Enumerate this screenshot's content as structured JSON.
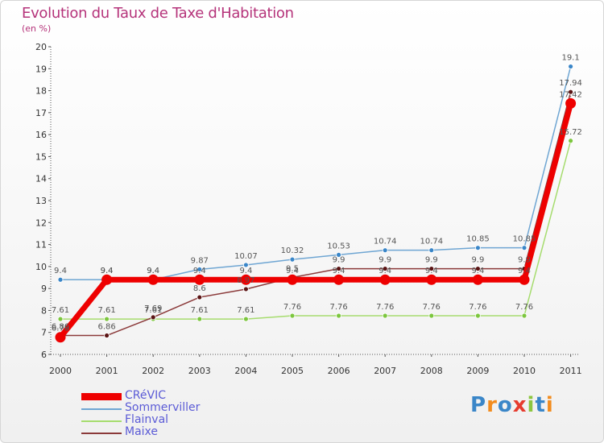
{
  "title": "Evolution du Taux de Taxe d'Habitation",
  "unit_label": "(en %)",
  "logo": {
    "text": "Proxiti",
    "letters": [
      "P",
      "r",
      "o",
      "x",
      "i",
      "t",
      "i"
    ],
    "colors": [
      "#3a86c8",
      "#f28c1e",
      "#3a86c8",
      "#e63c2f",
      "#8cc63f",
      "#3a86c8",
      "#f28c1e"
    ]
  },
  "chart_data": {
    "type": "line",
    "title": "Evolution du Taux de Taxe d'Habitation",
    "ylabel": "(en %)",
    "xlabel": "",
    "x": [
      "2000",
      "2001",
      "2002",
      "2003",
      "2004",
      "2005",
      "2006",
      "2007",
      "2008",
      "2009",
      "2010",
      "2011"
    ],
    "ylim": [
      6,
      20
    ],
    "yticks": [
      6,
      7,
      8,
      9,
      10,
      11,
      12,
      13,
      14,
      15,
      16,
      17,
      18,
      19,
      20
    ],
    "grid": false,
    "legend_position": "bottom-left",
    "series": [
      {
        "name": "Sommerviller",
        "color": "#6fa6d3",
        "marker": "#3a86c8",
        "width": 1.5,
        "values": [
          9.4,
          9.4,
          9.4,
          9.87,
          10.07,
          10.32,
          10.53,
          10.74,
          10.74,
          10.85,
          10.85,
          19.1
        ],
        "labels": [
          "9.4",
          "9.4",
          "9.4",
          "9.87",
          "10.07",
          "10.32",
          "10.53",
          "10.74",
          "10.74",
          "10.85",
          "10.85",
          "19.1"
        ]
      },
      {
        "name": "Flainval",
        "color": "#a6dc6e",
        "marker": "#7cc63e",
        "width": 1.5,
        "values": [
          7.61,
          7.61,
          7.61,
          7.61,
          7.61,
          7.76,
          7.76,
          7.76,
          7.76,
          7.76,
          7.76,
          15.72
        ],
        "labels": [
          "7.61",
          "7.61",
          "7.61",
          "7.61",
          "7.61",
          "7.76",
          "7.76",
          "7.76",
          "7.76",
          "7.76",
          "7.76",
          "15.72"
        ]
      },
      {
        "name": "Maixe",
        "color": "#8b3a3a",
        "marker": "#5a1414",
        "width": 1.5,
        "values": [
          6.86,
          6.86,
          7.69,
          8.6,
          8.97,
          9.5,
          9.9,
          9.9,
          9.9,
          9.9,
          9.9,
          17.94
        ],
        "labels": [
          "6.86",
          "6.86",
          "7.69",
          "8.6",
          "8.97",
          "9.5",
          "9.9",
          "9.9",
          "9.9",
          "9.9",
          "9.9",
          "17.94"
        ]
      },
      {
        "name": "CRéVIC",
        "color": "#ee0000",
        "marker": "#ee0000",
        "width": 7,
        "values": [
          6.78,
          9.4,
          9.4,
          9.4,
          9.4,
          9.4,
          9.4,
          9.4,
          9.4,
          9.4,
          9.4,
          17.42
        ],
        "labels": [
          "6.78",
          "9.4",
          "9.4",
          "9.4",
          "9.4",
          "9.4",
          "9.4",
          "9.4",
          "9.4",
          "9.4",
          "9.4",
          "17.42"
        ]
      }
    ],
    "legend": [
      {
        "name": "CRéVIC",
        "color": "#ee0000"
      },
      {
        "name": "Sommerviller",
        "color": "#6fa6d3"
      },
      {
        "name": "Flainval",
        "color": "#a6dc6e"
      },
      {
        "name": "Maixe",
        "color": "#8b3a3a"
      }
    ]
  }
}
